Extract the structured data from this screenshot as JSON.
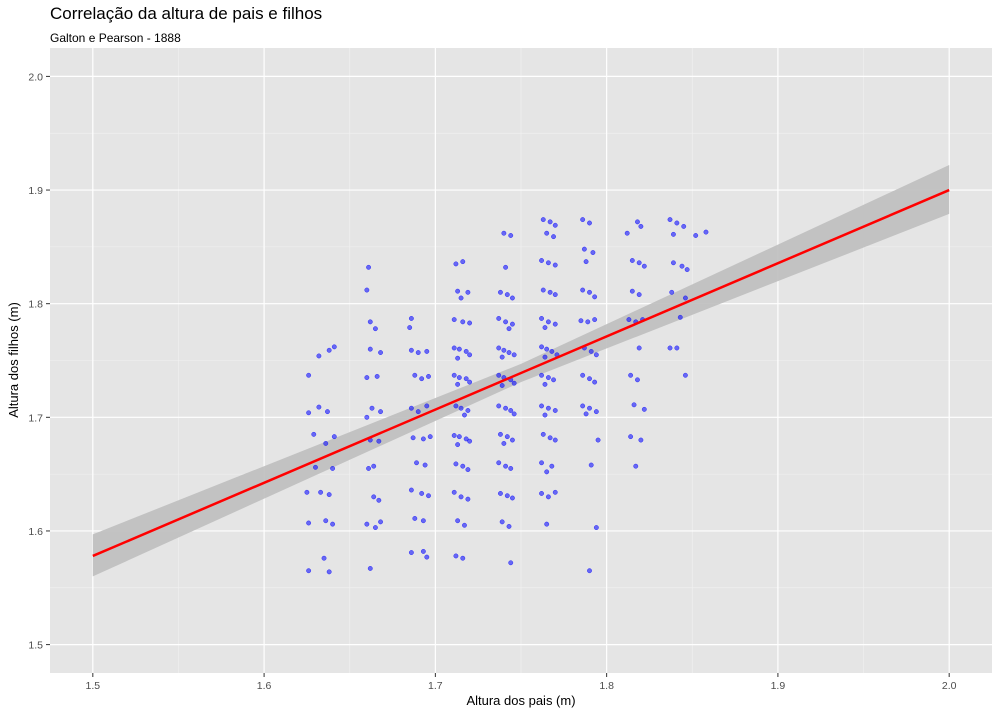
{
  "chart_data": {
    "type": "scatter",
    "title": "Correlação da altura de pais e filhos",
    "subtitle": "Galton e Pearson - 1888",
    "xlabel": "Altura dos pais (m)",
    "ylabel": "Altura dos filhos (m)",
    "xlim": [
      1.475,
      2.025
    ],
    "ylim": [
      1.475,
      2.025
    ],
    "x_ticks": [
      "1.5",
      "1.6",
      "1.7",
      "1.8",
      "1.9",
      "2.0"
    ],
    "y_ticks": [
      "1.5",
      "1.6",
      "1.7",
      "1.8",
      "1.9",
      "2.0"
    ],
    "grid": true,
    "point_color": "#0000ff",
    "line_color": "#ff0000",
    "ribbon_color": "#bebebe",
    "panel_color": "#e5e5e5",
    "regression": {
      "x": [
        1.5,
        2.0
      ],
      "y": [
        1.578,
        1.9
      ],
      "ci_lower": [
        1.56,
        1.879
      ],
      "ci_upper": [
        1.597,
        1.922
      ]
    },
    "points": [
      [
        1.632,
        1.754
      ],
      [
        1.638,
        1.759
      ],
      [
        1.641,
        1.762
      ],
      [
        1.626,
        1.737
      ],
      [
        1.632,
        1.709
      ],
      [
        1.637,
        1.705
      ],
      [
        1.626,
        1.704
      ],
      [
        1.629,
        1.685
      ],
      [
        1.641,
        1.683
      ],
      [
        1.636,
        1.677
      ],
      [
        1.63,
        1.656
      ],
      [
        1.64,
        1.655
      ],
      [
        1.625,
        1.634
      ],
      [
        1.633,
        1.634
      ],
      [
        1.638,
        1.632
      ],
      [
        1.626,
        1.607
      ],
      [
        1.636,
        1.609
      ],
      [
        1.64,
        1.606
      ],
      [
        1.626,
        1.565
      ],
      [
        1.635,
        1.576
      ],
      [
        1.638,
        1.564
      ],
      [
        1.661,
        1.832
      ],
      [
        1.66,
        1.812
      ],
      [
        1.662,
        1.784
      ],
      [
        1.665,
        1.778
      ],
      [
        1.662,
        1.76
      ],
      [
        1.668,
        1.757
      ],
      [
        1.66,
        1.735
      ],
      [
        1.666,
        1.736
      ],
      [
        1.663,
        1.708
      ],
      [
        1.668,
        1.705
      ],
      [
        1.66,
        1.7
      ],
      [
        1.662,
        1.68
      ],
      [
        1.667,
        1.679
      ],
      [
        1.664,
        1.657
      ],
      [
        1.661,
        1.655
      ],
      [
        1.664,
        1.63
      ],
      [
        1.667,
        1.627
      ],
      [
        1.66,
        1.606
      ],
      [
        1.665,
        1.603
      ],
      [
        1.668,
        1.608
      ],
      [
        1.662,
        1.567
      ],
      [
        1.686,
        1.787
      ],
      [
        1.685,
        1.779
      ],
      [
        1.686,
        1.759
      ],
      [
        1.69,
        1.757
      ],
      [
        1.695,
        1.758
      ],
      [
        1.688,
        1.737
      ],
      [
        1.692,
        1.734
      ],
      [
        1.696,
        1.736
      ],
      [
        1.686,
        1.708
      ],
      [
        1.69,
        1.705
      ],
      [
        1.695,
        1.71
      ],
      [
        1.687,
        1.682
      ],
      [
        1.693,
        1.681
      ],
      [
        1.697,
        1.683
      ],
      [
        1.689,
        1.66
      ],
      [
        1.694,
        1.658
      ],
      [
        1.686,
        1.636
      ],
      [
        1.692,
        1.633
      ],
      [
        1.696,
        1.631
      ],
      [
        1.688,
        1.611
      ],
      [
        1.693,
        1.609
      ],
      [
        1.686,
        1.581
      ],
      [
        1.693,
        1.582
      ],
      [
        1.695,
        1.577
      ],
      [
        1.712,
        1.835
      ],
      [
        1.716,
        1.837
      ],
      [
        1.713,
        1.811
      ],
      [
        1.719,
        1.81
      ],
      [
        1.715,
        1.805
      ],
      [
        1.711,
        1.786
      ],
      [
        1.716,
        1.784
      ],
      [
        1.72,
        1.783
      ],
      [
        1.711,
        1.761
      ],
      [
        1.714,
        1.76
      ],
      [
        1.718,
        1.758
      ],
      [
        1.72,
        1.755
      ],
      [
        1.713,
        1.752
      ],
      [
        1.711,
        1.737
      ],
      [
        1.714,
        1.735
      ],
      [
        1.718,
        1.734
      ],
      [
        1.72,
        1.731
      ],
      [
        1.713,
        1.729
      ],
      [
        1.712,
        1.71
      ],
      [
        1.715,
        1.708
      ],
      [
        1.719,
        1.706
      ],
      [
        1.717,
        1.702
      ],
      [
        1.711,
        1.684
      ],
      [
        1.714,
        1.683
      ],
      [
        1.718,
        1.681
      ],
      [
        1.72,
        1.679
      ],
      [
        1.713,
        1.676
      ],
      [
        1.712,
        1.659
      ],
      [
        1.716,
        1.657
      ],
      [
        1.719,
        1.654
      ],
      [
        1.711,
        1.634
      ],
      [
        1.715,
        1.63
      ],
      [
        1.719,
        1.628
      ],
      [
        1.713,
        1.609
      ],
      [
        1.717,
        1.605
      ],
      [
        1.712,
        1.578
      ],
      [
        1.716,
        1.576
      ],
      [
        1.74,
        1.862
      ],
      [
        1.744,
        1.86
      ],
      [
        1.741,
        1.832
      ],
      [
        1.738,
        1.81
      ],
      [
        1.742,
        1.808
      ],
      [
        1.745,
        1.805
      ],
      [
        1.737,
        1.787
      ],
      [
        1.741,
        1.784
      ],
      [
        1.745,
        1.782
      ],
      [
        1.743,
        1.778
      ],
      [
        1.737,
        1.761
      ],
      [
        1.74,
        1.759
      ],
      [
        1.743,
        1.757
      ],
      [
        1.746,
        1.755
      ],
      [
        1.739,
        1.753
      ],
      [
        1.737,
        1.737
      ],
      [
        1.74,
        1.735
      ],
      [
        1.744,
        1.733
      ],
      [
        1.746,
        1.73
      ],
      [
        1.739,
        1.728
      ],
      [
        1.737,
        1.71
      ],
      [
        1.741,
        1.708
      ],
      [
        1.744,
        1.706
      ],
      [
        1.746,
        1.703
      ],
      [
        1.738,
        1.685
      ],
      [
        1.742,
        1.683
      ],
      [
        1.745,
        1.68
      ],
      [
        1.74,
        1.677
      ],
      [
        1.737,
        1.66
      ],
      [
        1.741,
        1.657
      ],
      [
        1.744,
        1.655
      ],
      [
        1.738,
        1.633
      ],
      [
        1.742,
        1.631
      ],
      [
        1.745,
        1.629
      ],
      [
        1.739,
        1.608
      ],
      [
        1.743,
        1.604
      ],
      [
        1.744,
        1.572
      ],
      [
        1.763,
        1.874
      ],
      [
        1.767,
        1.872
      ],
      [
        1.77,
        1.869
      ],
      [
        1.765,
        1.862
      ],
      [
        1.769,
        1.859
      ],
      [
        1.762,
        1.838
      ],
      [
        1.766,
        1.836
      ],
      [
        1.77,
        1.834
      ],
      [
        1.763,
        1.812
      ],
      [
        1.767,
        1.81
      ],
      [
        1.77,
        1.808
      ],
      [
        1.762,
        1.787
      ],
      [
        1.766,
        1.784
      ],
      [
        1.77,
        1.782
      ],
      [
        1.764,
        1.779
      ],
      [
        1.762,
        1.762
      ],
      [
        1.765,
        1.76
      ],
      [
        1.768,
        1.758
      ],
      [
        1.771,
        1.755
      ],
      [
        1.764,
        1.753
      ],
      [
        1.762,
        1.737
      ],
      [
        1.766,
        1.735
      ],
      [
        1.769,
        1.733
      ],
      [
        1.764,
        1.729
      ],
      [
        1.762,
        1.71
      ],
      [
        1.766,
        1.708
      ],
      [
        1.77,
        1.706
      ],
      [
        1.764,
        1.702
      ],
      [
        1.763,
        1.685
      ],
      [
        1.767,
        1.682
      ],
      [
        1.77,
        1.68
      ],
      [
        1.762,
        1.66
      ],
      [
        1.768,
        1.657
      ],
      [
        1.765,
        1.652
      ],
      [
        1.762,
        1.633
      ],
      [
        1.766,
        1.63
      ],
      [
        1.77,
        1.634
      ],
      [
        1.765,
        1.606
      ],
      [
        1.786,
        1.874
      ],
      [
        1.79,
        1.871
      ],
      [
        1.787,
        1.848
      ],
      [
        1.792,
        1.845
      ],
      [
        1.788,
        1.837
      ],
      [
        1.786,
        1.812
      ],
      [
        1.79,
        1.81
      ],
      [
        1.793,
        1.806
      ],
      [
        1.785,
        1.785
      ],
      [
        1.789,
        1.784
      ],
      [
        1.793,
        1.786
      ],
      [
        1.787,
        1.761
      ],
      [
        1.791,
        1.758
      ],
      [
        1.794,
        1.755
      ],
      [
        1.786,
        1.737
      ],
      [
        1.79,
        1.734
      ],
      [
        1.793,
        1.731
      ],
      [
        1.786,
        1.71
      ],
      [
        1.79,
        1.708
      ],
      [
        1.794,
        1.705
      ],
      [
        1.788,
        1.703
      ],
      [
        1.795,
        1.68
      ],
      [
        1.791,
        1.658
      ],
      [
        1.794,
        1.603
      ],
      [
        1.79,
        1.565
      ],
      [
        1.812,
        1.862
      ],
      [
        1.818,
        1.872
      ],
      [
        1.82,
        1.868
      ],
      [
        1.815,
        1.838
      ],
      [
        1.819,
        1.836
      ],
      [
        1.822,
        1.833
      ],
      [
        1.815,
        1.811
      ],
      [
        1.819,
        1.808
      ],
      [
        1.813,
        1.786
      ],
      [
        1.817,
        1.784
      ],
      [
        1.821,
        1.786
      ],
      [
        1.819,
        1.761
      ],
      [
        1.814,
        1.737
      ],
      [
        1.818,
        1.733
      ],
      [
        1.816,
        1.711
      ],
      [
        1.822,
        1.707
      ],
      [
        1.814,
        1.683
      ],
      [
        1.82,
        1.68
      ],
      [
        1.817,
        1.657
      ],
      [
        1.837,
        1.874
      ],
      [
        1.841,
        1.871
      ],
      [
        1.845,
        1.868
      ],
      [
        1.839,
        1.861
      ],
      [
        1.852,
        1.86
      ],
      [
        1.858,
        1.863
      ],
      [
        1.839,
        1.836
      ],
      [
        1.844,
        1.833
      ],
      [
        1.847,
        1.83
      ],
      [
        1.838,
        1.81
      ],
      [
        1.846,
        1.805
      ],
      [
        1.843,
        1.788
      ],
      [
        1.837,
        1.761
      ],
      [
        1.841,
        1.761
      ],
      [
        1.846,
        1.737
      ]
    ]
  }
}
